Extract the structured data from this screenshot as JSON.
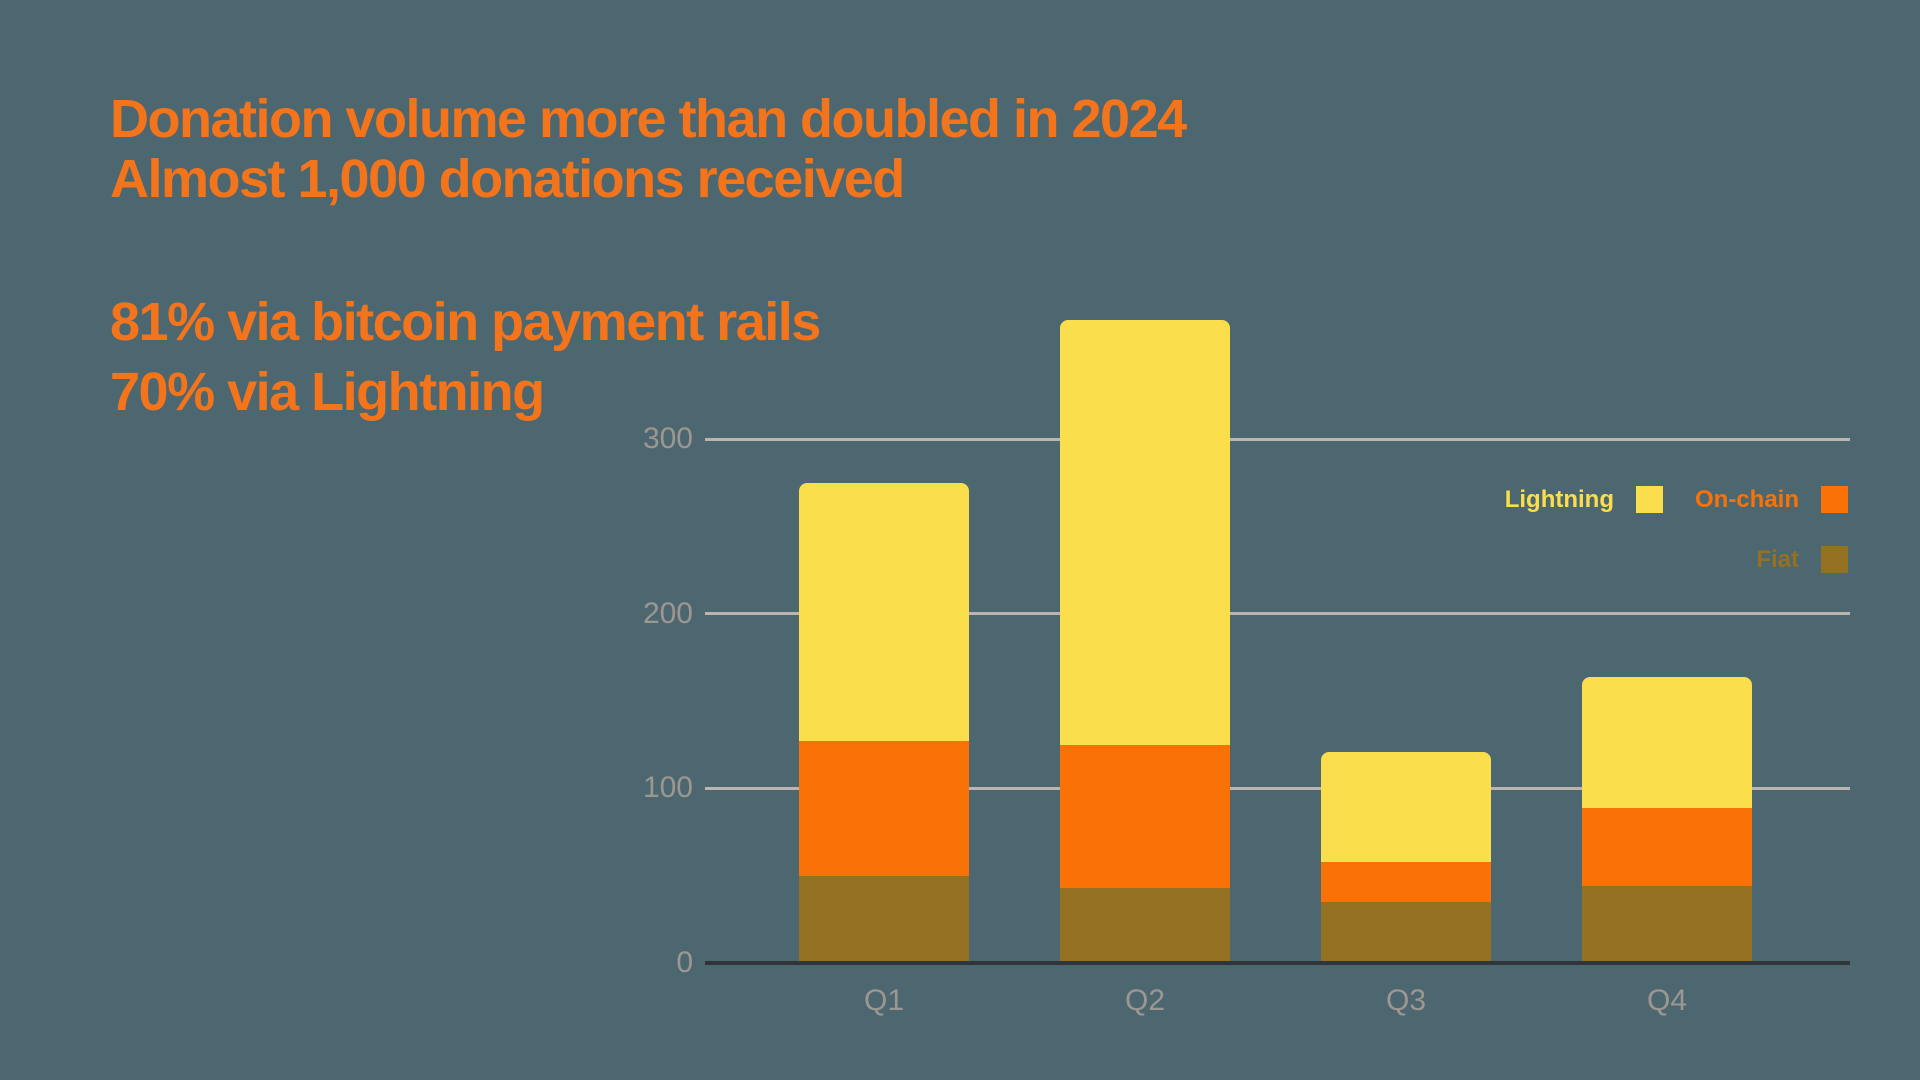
{
  "title_lines": [
    "Donation volume more than doubled in 2024",
    "Almost 1,000 donations received",
    "81% via bitcoin payment rails",
    "70% via Lightning"
  ],
  "colors": {
    "background": "#4d6771",
    "heading": "#f4741c",
    "gridline": "#bab5ae",
    "axis_line": "#2f3539",
    "tick_label": "#9c9790"
  },
  "chart_data": {
    "type": "bar",
    "stacked": true,
    "title": "",
    "xlabel": "",
    "ylabel": "",
    "categories": [
      "Q1",
      "Q2",
      "Q3",
      "Q4"
    ],
    "series": [
      {
        "name": "Fiat",
        "color": "#947122",
        "values": [
          50,
          43,
          35,
          44
        ]
      },
      {
        "name": "On-chain",
        "color": "#f87207",
        "values": [
          77,
          82,
          23,
          45
        ]
      },
      {
        "name": "Lightning",
        "color": "#fbde4b",
        "values": [
          148,
          243,
          63,
          75
        ]
      }
    ],
    "totals": [
      275,
      368,
      121,
      164
    ],
    "y_axis": {
      "ticks": [
        0,
        100,
        200,
        300
      ],
      "max": 300
    },
    "grid": true,
    "legend_position": "right",
    "legend_order": [
      "Lightning",
      "On-chain",
      "Fiat"
    ]
  }
}
